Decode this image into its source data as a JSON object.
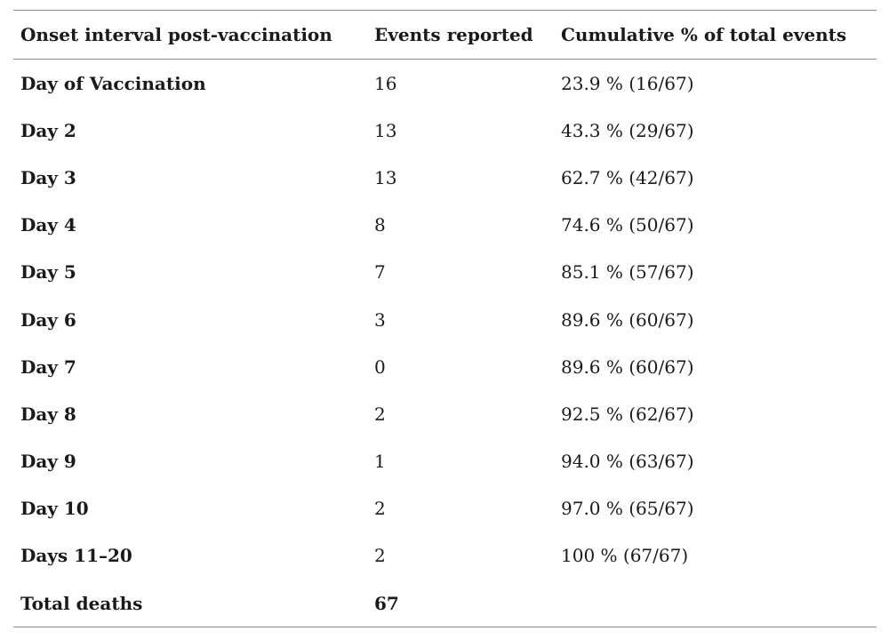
{
  "table": {
    "headers": {
      "interval": "Onset interval post-vaccination",
      "events": "Events reported",
      "cumulative": "Cumulative % of total events"
    },
    "rows": [
      {
        "interval": "Day of Vaccination",
        "events": "16",
        "cumulative": "23.9 % (16/67)"
      },
      {
        "interval": "Day 2",
        "events": "13",
        "cumulative": "43.3 % (29/67)"
      },
      {
        "interval": "Day 3",
        "events": "13",
        "cumulative": "62.7 % (42/67)"
      },
      {
        "interval": "Day 4",
        "events": "8",
        "cumulative": "74.6 % (50/67)"
      },
      {
        "interval": "Day 5",
        "events": "7",
        "cumulative": "85.1 % (57/67)"
      },
      {
        "interval": "Day 6",
        "events": "3",
        "cumulative": "89.6 % (60/67)"
      },
      {
        "interval": "Day 7",
        "events": "0",
        "cumulative": "89.6 % (60/67)"
      },
      {
        "interval": "Day 8",
        "events": "2",
        "cumulative": "92.5 % (62/67)"
      },
      {
        "interval": "Day 9",
        "events": "1",
        "cumulative": "94.0 % (63/67)"
      },
      {
        "interval": "Day 10",
        "events": "2",
        "cumulative": "97.0 % (65/67)"
      },
      {
        "interval": "Days 11–20",
        "events": "2",
        "cumulative": "100 % (67/67)"
      }
    ],
    "total": {
      "label": "Total deaths",
      "events": "67",
      "cumulative": ""
    }
  }
}
